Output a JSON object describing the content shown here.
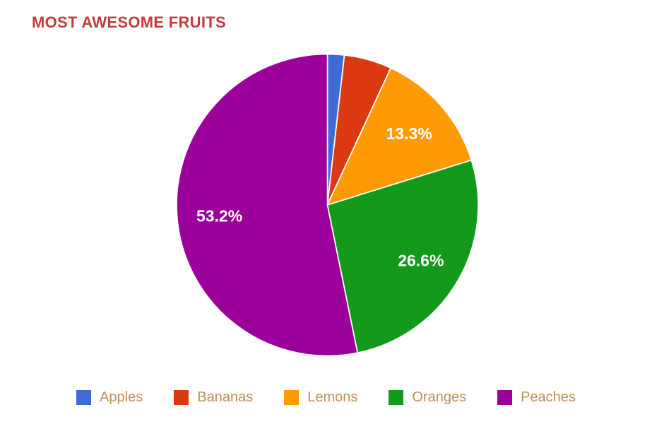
{
  "page": {
    "background": "#ffffff"
  },
  "title": {
    "text": "MOST AWESOME FRUITS",
    "color": "#c53b3d"
  },
  "chart_data": {
    "type": "pie",
    "title": "MOST AWESOME FRUITS",
    "categories": [
      "Apples",
      "Bananas",
      "Lemons",
      "Oranges",
      "Peaches"
    ],
    "values": [
      1.8,
      5.1,
      13.3,
      26.6,
      53.2
    ],
    "values_unit": "percent",
    "slice_labels": [
      "",
      "",
      "13.3%",
      "26.6%",
      "53.2%"
    ],
    "colors": [
      "#3e6bd5",
      "#dc3912",
      "#fe9a04",
      "#149a1b",
      "#9b009b"
    ],
    "slice_label_color": "#ffffff",
    "slice_border_color": "#ffffff",
    "start_angle_deg": 0,
    "direction": "clockwise",
    "legend_position": "bottom",
    "grid": "off"
  },
  "legend": {
    "text_color": "#bc8f55",
    "items": [
      {
        "label": "Apples",
        "color": "#3e6bd5"
      },
      {
        "label": "Bananas",
        "color": "#dc3912"
      },
      {
        "label": "Lemons",
        "color": "#fe9a04"
      },
      {
        "label": "Oranges",
        "color": "#149a1b"
      },
      {
        "label": "Peaches",
        "color": "#9b009b"
      }
    ]
  }
}
